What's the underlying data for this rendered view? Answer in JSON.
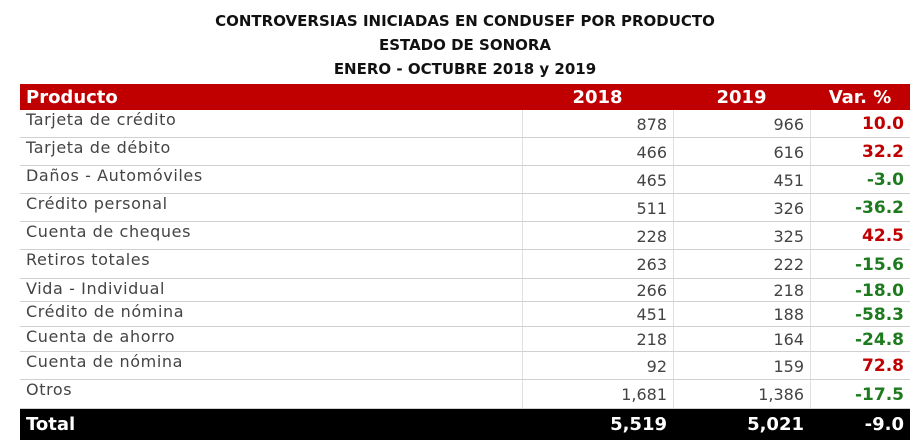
{
  "header": {
    "title_lines": [
      "CONTROVERSIAS INICIADAS EN CONDUSEF POR PRODUCTO",
      "ESTADO DE SONORA",
      "ENERO - OCTUBRE 2018 y 2019"
    ]
  },
  "table": {
    "columns": [
      "Producto",
      "2018",
      "2019",
      "Var. %"
    ],
    "rows": [
      [
        "Tarjeta de crédito",
        "878",
        "966",
        "10.0"
      ],
      [
        "Tarjeta de débito",
        "466",
        "616",
        "32.2"
      ],
      [
        "Daños - Automóviles",
        "465",
        "451",
        "-3.0"
      ],
      [
        "Crédito personal",
        "511",
        "326",
        "-36.2"
      ],
      [
        "Cuenta de cheques",
        "228",
        "325",
        "42.5"
      ],
      [
        "Retiros totales",
        "263",
        "222",
        "-15.6"
      ],
      [
        "Vida - Individual",
        "266",
        "218",
        "-18.0"
      ],
      [
        "Crédito de nómina",
        "451",
        "188",
        "-58.3"
      ],
      [
        "Cuenta de ahorro",
        "218",
        "164",
        "-24.8"
      ],
      [
        "Cuenta de nómina",
        "92",
        "159",
        "72.8"
      ],
      [
        "Otros",
        "1,681",
        "1,386",
        "-17.5"
      ]
    ],
    "total": [
      "Total",
      "5,519",
      "5,021",
      "-9.0"
    ],
    "header_color": "#c00000",
    "positive_color": "#c00000",
    "negative_color": "#1e7a1e"
  }
}
